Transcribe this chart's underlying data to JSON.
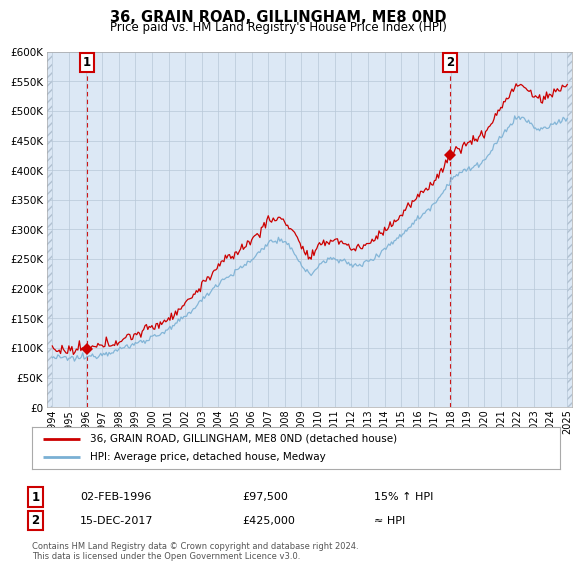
{
  "title": "36, GRAIN ROAD, GILLINGHAM, ME8 0ND",
  "subtitle": "Price paid vs. HM Land Registry's House Price Index (HPI)",
  "legend_label_red": "36, GRAIN ROAD, GILLINGHAM, ME8 0ND (detached house)",
  "legend_label_blue": "HPI: Average price, detached house, Medway",
  "sale1_date": "02-FEB-1996",
  "sale1_price": "£97,500",
  "sale1_hpi": "15% ↑ HPI",
  "sale2_date": "15-DEC-2017",
  "sale2_price": "£425,000",
  "sale2_hpi": "≈ HPI",
  "footer": "Contains HM Land Registry data © Crown copyright and database right 2024.\nThis data is licensed under the Open Government Licence v3.0.",
  "ylim": [
    0,
    600000
  ],
  "background_color": "#dce8f5",
  "grid_color": "#b8c8d8",
  "red_color": "#cc0000",
  "blue_color": "#7ab0d4",
  "marker1_year": 1996.08,
  "marker1_value": 97500,
  "marker2_year": 2017.95,
  "marker2_value": 425000,
  "sale1_vline_year": 1996.08,
  "sale2_vline_year": 2017.95,
  "xlim_left": 1993.7,
  "xlim_right": 2025.3
}
